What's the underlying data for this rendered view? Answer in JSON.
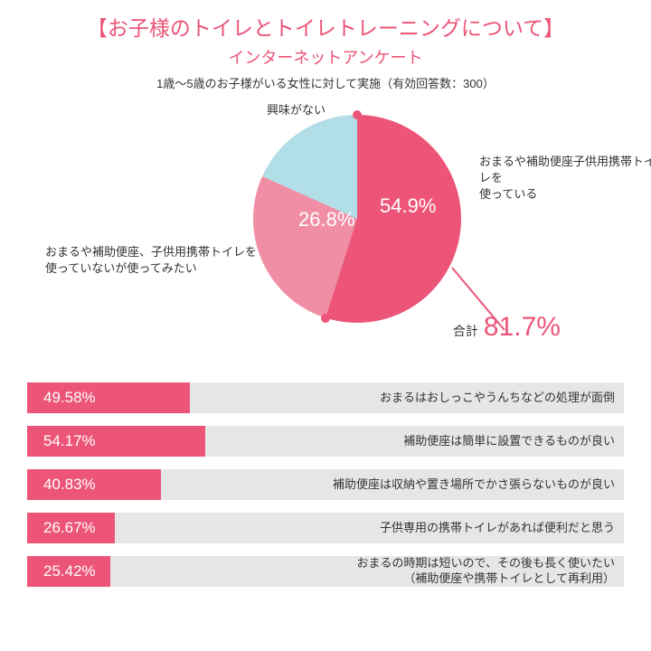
{
  "title_text": "【お子様のトイレとトイレトレーニングについて】",
  "subtitle_text": "インターネットアンケート",
  "caption_text": "1歳～5歳のお子様がいる女性に対して実施（有効回答数：300）",
  "accent_color": "#ec5578",
  "pie": {
    "type": "pie",
    "bg": "#ffffff",
    "slices": [
      {
        "label": "おまるや補助便座子供用携帯トイレを\n使っている",
        "value": 54.9,
        "color": "#ec5578",
        "pct_display": "54.9%"
      },
      {
        "label": "おまるや補助便座、子供用携帯トイレを\n使っていないが使ってみたい",
        "value": 26.8,
        "color": "#f08ea5",
        "pct_display": "26.8%"
      },
      {
        "label": "興味がない",
        "value": 18.3,
        "color": "#b2dee8",
        "pct_display": ""
      }
    ],
    "dot_color": "#ec5578",
    "total_label": "合計",
    "total_value": "81.7%"
  },
  "bars": {
    "type": "bar",
    "track_color": "#e6e6e6",
    "fill_color": "#ec5578",
    "text_color": "#ffffff",
    "max_pct": 100,
    "track_width_pct": 60,
    "items": [
      {
        "pct": 49.58,
        "display": "49.58%",
        "label": "おまるはおしっこやうんちなどの処理が面倒"
      },
      {
        "pct": 54.17,
        "display": "54.17%",
        "label": "補助便座は簡単に設置できるものが良い"
      },
      {
        "pct": 40.83,
        "display": "40.83%",
        "label": "補助便座は収納や置き場所でかさ張らないものが良い"
      },
      {
        "pct": 26.67,
        "display": "26.67%",
        "label": "子供専用の携帯トイレがあれば便利だと思う"
      },
      {
        "pct": 25.42,
        "display": "25.42%",
        "label": "おまるの時期は短いので、その後も長く使いたい\n（補助便座や携帯トイレとして再利用）"
      }
    ]
  }
}
